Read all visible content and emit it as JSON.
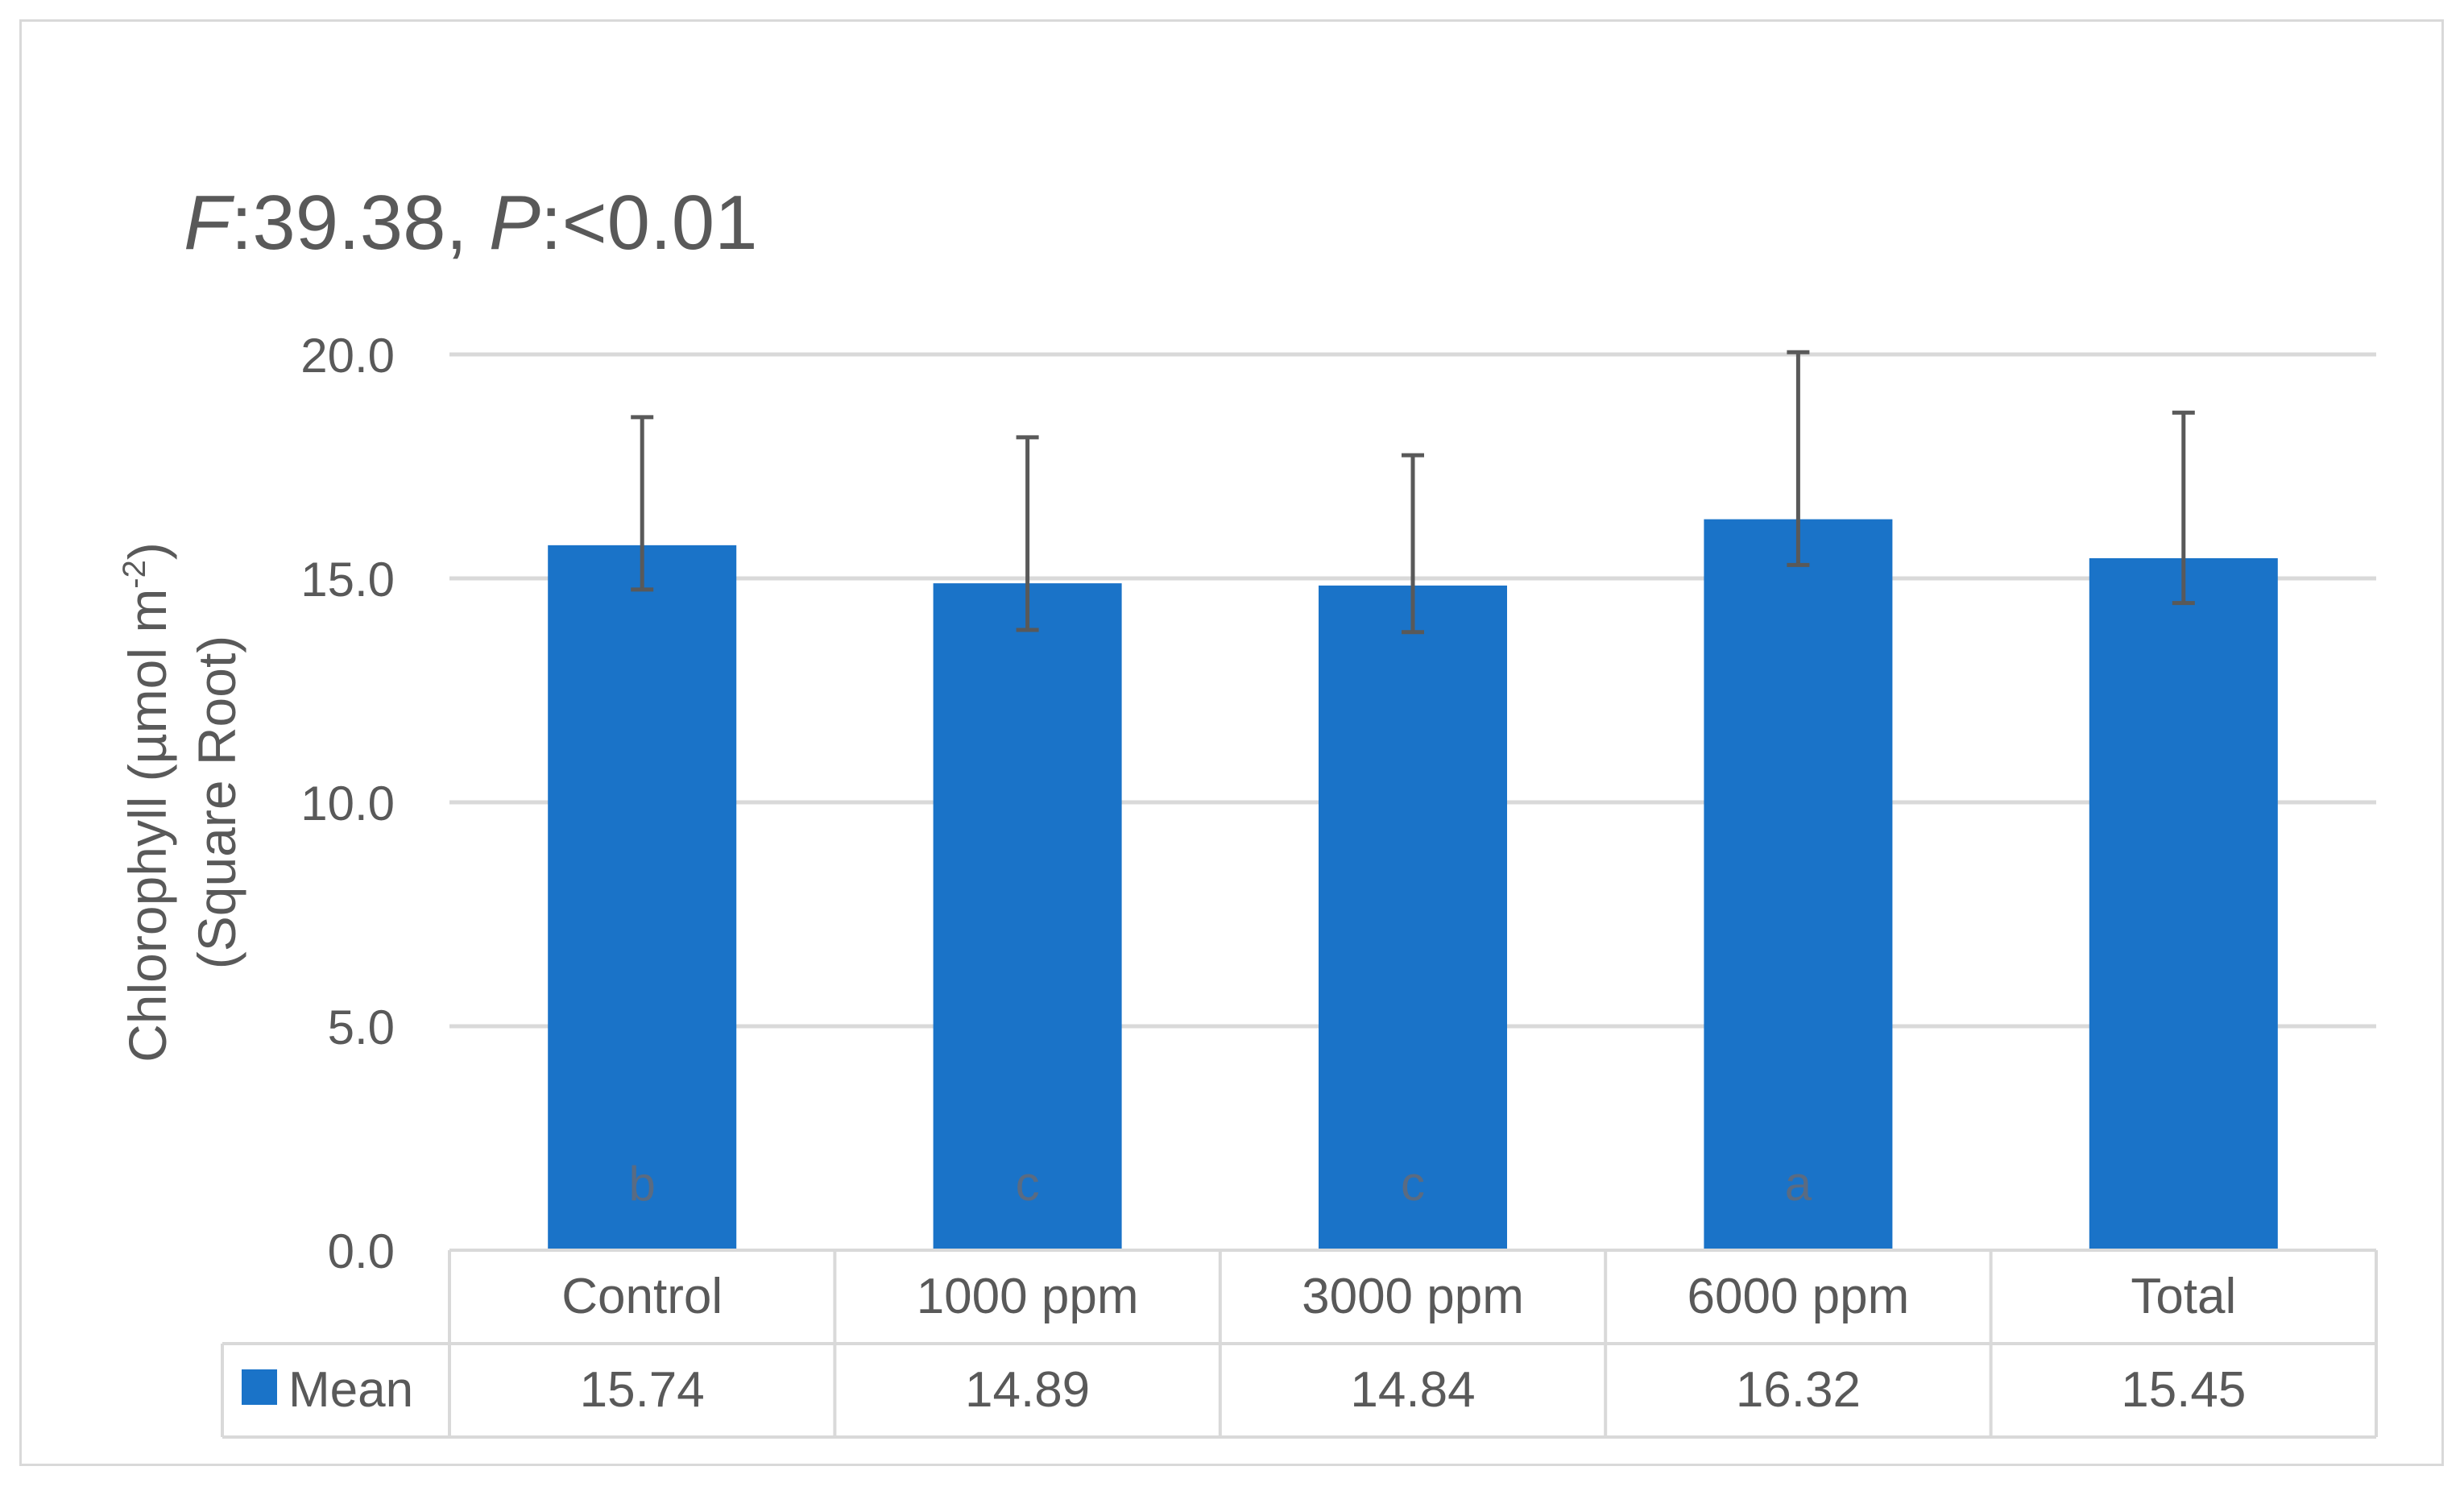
{
  "chart_data": {
    "type": "bar",
    "annotation": {
      "F_label": "F",
      "F_value": ":39.38, ",
      "P_label": "P",
      "P_value": ":<0.01"
    },
    "ylabel_line1": "Chlorophyll (µmol m",
    "ylabel_superscript": "-2",
    "ylabel_line1_end": ")",
    "ylabel_line2": "(Square Root)",
    "ylim": [
      0,
      20
    ],
    "yticks": [
      "0.0",
      "5.0",
      "10.0",
      "15.0",
      "20.0"
    ],
    "ytick_values": [
      0,
      5,
      10,
      15,
      20
    ],
    "grid": true,
    "categories": [
      "Control",
      "1000 ppm",
      "3000 ppm",
      "6000 ppm",
      "Total"
    ],
    "series": [
      {
        "name": "Mean",
        "color": "#1a73c8",
        "values": [
          15.74,
          14.89,
          14.84,
          16.32,
          15.45
        ],
        "value_labels": [
          "15.74",
          "14.89",
          "14.84",
          "16.32",
          "15.45"
        ],
        "error_upper": [
          18.6,
          18.15,
          17.75,
          20.05,
          18.7
        ],
        "error_lower": [
          14.75,
          13.85,
          13.8,
          15.3,
          14.45
        ],
        "letters": [
          "b",
          "c",
          "c",
          "a",
          ""
        ]
      }
    ],
    "data_table": true
  }
}
